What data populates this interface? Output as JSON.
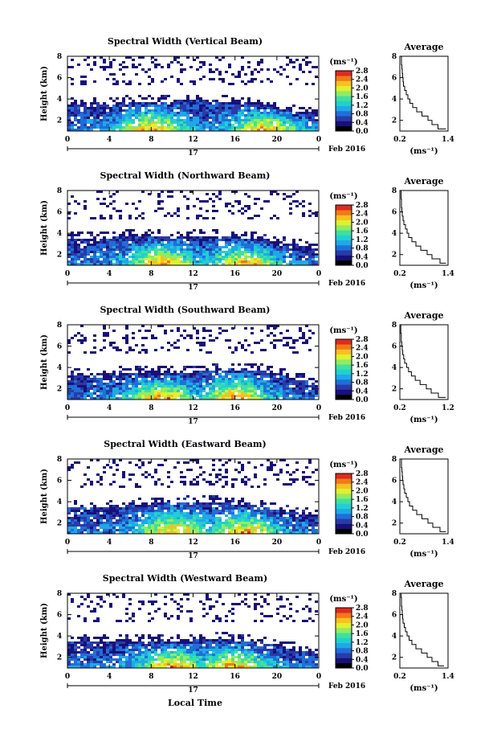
{
  "figure": {
    "xlabel": "Local Time",
    "date_mid_tick": "17",
    "date_right_label": "Feb 2016",
    "colorbar_unit": "(ms⁻¹)",
    "avg_title": "Average",
    "avg_xlabel": "(ms⁻¹)"
  },
  "colors": {
    "colormap": [
      "#000000",
      "#18107a",
      "#2a3aa8",
      "#1f6fd8",
      "#1fa8e8",
      "#20d0d0",
      "#40e0a0",
      "#90ec60",
      "#e0f030",
      "#f8c020",
      "#f07a18",
      "#e02a20"
    ]
  },
  "chart_data": [
    {
      "type": "heatmap",
      "title": "Spectral Width (Vertical Beam)",
      "ylabel": "Height (km)",
      "xlim": [
        0,
        24
      ],
      "ylim": [
        1,
        8
      ],
      "xticks": [
        "0",
        "4",
        "8",
        "12",
        "16",
        "20",
        "0"
      ],
      "yticks": [
        "2",
        "4",
        "6",
        "8"
      ],
      "colorbar": {
        "ticks": [
          "0.0",
          "0.4",
          "0.8",
          "1.2",
          "1.6",
          "2.0",
          "2.4",
          "2.8"
        ],
        "range": [
          0,
          2.8
        ]
      },
      "dense_top_km": [
        3.6,
        3.5,
        3.7,
        3.8,
        3.9,
        3.8,
        3.6,
        3.0,
        2.6
      ],
      "peak_hours": [
        8,
        19
      ],
      "average_profile": {
        "xlim": [
          0.2,
          1.4
        ],
        "xticks": [
          "0.2",
          "1.4"
        ],
        "yticks": [
          "2",
          "4",
          "6",
          "8"
        ],
        "height_km": [
          1.2,
          1.6,
          2.0,
          2.4,
          2.8,
          3.2,
          3.6,
          4.0,
          4.4,
          4.8,
          5.2,
          5.6,
          6.0,
          6.4,
          6.8,
          7.2,
          7.6,
          8.0
        ],
        "width": [
          1.35,
          1.15,
          1.0,
          0.9,
          0.75,
          0.62,
          0.52,
          0.45,
          0.4,
          0.36,
          0.32,
          0.29,
          0.28,
          0.27,
          0.26,
          0.25,
          0.24,
          0.24
        ]
      }
    },
    {
      "type": "heatmap",
      "title": "Spectral Width (Northward Beam)",
      "ylabel": "Height (km)",
      "xlim": [
        0,
        24
      ],
      "ylim": [
        1,
        8
      ],
      "xticks": [
        "0",
        "4",
        "8",
        "12",
        "16",
        "20",
        "0"
      ],
      "yticks": [
        "2",
        "4",
        "6",
        "8"
      ],
      "colorbar": {
        "ticks": [
          "0.0",
          "0.4",
          "0.8",
          "1.2",
          "1.6",
          "2.0",
          "2.4",
          "2.8"
        ],
        "range": [
          0,
          2.8
        ]
      },
      "dense_top_km": [
        3.6,
        3.5,
        3.7,
        3.8,
        3.8,
        3.7,
        3.5,
        3.0,
        2.5
      ],
      "peak_hours": [
        9,
        17
      ],
      "average_profile": {
        "xlim": [
          0.2,
          1.4
        ],
        "xticks": [
          "0.2",
          "1.4"
        ],
        "yticks": [
          "2",
          "4",
          "6",
          "8"
        ],
        "height_km": [
          1.2,
          1.6,
          2.0,
          2.4,
          2.8,
          3.2,
          3.6,
          4.0,
          4.4,
          4.8,
          5.2,
          5.6,
          6.0,
          6.4,
          6.8,
          7.2,
          7.6,
          8.0
        ],
        "width": [
          1.35,
          1.2,
          1.0,
          0.88,
          0.72,
          0.6,
          0.5,
          0.42,
          0.38,
          0.34,
          0.3,
          0.28,
          0.26,
          0.25,
          0.24,
          0.24,
          0.23,
          0.23
        ]
      }
    },
    {
      "type": "heatmap",
      "title": "Spectral Width (Southward Beam)",
      "ylabel": "Height (km)",
      "xlim": [
        0,
        24
      ],
      "ylim": [
        1,
        8
      ],
      "xticks": [
        "0",
        "4",
        "8",
        "12",
        "16",
        "20",
        "0"
      ],
      "yticks": [
        "2",
        "4",
        "6",
        "8"
      ],
      "colorbar": {
        "ticks": [
          "0.0",
          "0.4",
          "0.8",
          "1.2",
          "1.6",
          "2.0",
          "2.4",
          "2.8"
        ],
        "range": [
          0,
          2.8
        ]
      },
      "dense_top_km": [
        3.3,
        3.4,
        3.5,
        3.5,
        3.6,
        3.9,
        3.8,
        3.2,
        2.4
      ],
      "peak_hours": [
        9,
        16
      ],
      "average_profile": {
        "xlim": [
          0.2,
          1.2
        ],
        "xticks": [
          "0.2",
          "1.2"
        ],
        "yticks": [
          "2",
          "4",
          "6",
          "8"
        ],
        "height_km": [
          1.2,
          1.6,
          2.0,
          2.4,
          2.8,
          3.2,
          3.6,
          4.0,
          4.4,
          4.8,
          5.2,
          5.6,
          6.0,
          6.4,
          6.8,
          7.2,
          7.6,
          8.0
        ],
        "width": [
          1.15,
          1.0,
          0.85,
          0.75,
          0.62,
          0.52,
          0.44,
          0.38,
          0.34,
          0.3,
          0.28,
          0.26,
          0.25,
          0.24,
          0.23,
          0.23,
          0.22,
          0.22
        ]
      }
    },
    {
      "type": "heatmap",
      "title": "Spectral Width (Eastward Beam)",
      "ylabel": "Height (km)",
      "xlim": [
        0,
        24
      ],
      "ylim": [
        1,
        8
      ],
      "xticks": [
        "0",
        "4",
        "8",
        "12",
        "16",
        "20",
        "0"
      ],
      "yticks": [
        "2",
        "4",
        "6",
        "8"
      ],
      "colorbar": {
        "ticks": [
          "0.0",
          "0.4",
          "0.8",
          "1.2",
          "1.6",
          "2.0",
          "2.4",
          "2.8"
        ],
        "range": [
          0,
          2.8
        ]
      },
      "dense_top_km": [
        3.5,
        3.4,
        3.6,
        3.9,
        4.0,
        3.9,
        3.6,
        3.1,
        2.6
      ],
      "peak_hours": [
        10,
        17
      ],
      "average_profile": {
        "xlim": [
          0.2,
          1.4
        ],
        "xticks": [
          "0.2",
          "1.4"
        ],
        "yticks": [
          "2",
          "4",
          "6",
          "8"
        ],
        "height_km": [
          1.2,
          1.6,
          2.0,
          2.4,
          2.8,
          3.2,
          3.6,
          4.0,
          4.4,
          4.8,
          5.2,
          5.6,
          6.0,
          6.4,
          6.8,
          7.2,
          7.6,
          8.0
        ],
        "width": [
          1.35,
          1.2,
          1.02,
          0.9,
          0.75,
          0.62,
          0.52,
          0.44,
          0.4,
          0.36,
          0.32,
          0.3,
          0.28,
          0.27,
          0.26,
          0.25,
          0.24,
          0.24
        ]
      }
    },
    {
      "type": "heatmap",
      "title": "Spectral Width (Westward Beam)",
      "ylabel": "Height (km)",
      "xlim": [
        0,
        24
      ],
      "ylim": [
        1,
        8
      ],
      "xticks": [
        "0",
        "4",
        "8",
        "12",
        "16",
        "20",
        "0"
      ],
      "yticks": [
        "2",
        "4",
        "6",
        "8"
      ],
      "colorbar": {
        "ticks": [
          "0.0",
          "0.4",
          "0.8",
          "1.2",
          "1.6",
          "2.0",
          "2.4",
          "2.8"
        ],
        "range": [
          0,
          2.8
        ]
      },
      "dense_top_km": [
        3.4,
        3.5,
        3.6,
        3.5,
        3.6,
        3.7,
        3.4,
        2.9,
        2.4
      ],
      "peak_hours": [
        10,
        16
      ],
      "average_profile": {
        "xlim": [
          0.2,
          1.4
        ],
        "xticks": [
          "0.2",
          "1.4"
        ],
        "yticks": [
          "2",
          "4",
          "6",
          "8"
        ],
        "height_km": [
          1.2,
          1.6,
          2.0,
          2.4,
          2.8,
          3.2,
          3.6,
          4.0,
          4.4,
          4.8,
          5.2,
          5.6,
          6.0,
          6.4,
          6.8,
          7.2,
          7.6,
          8.0
        ],
        "width": [
          1.3,
          1.15,
          1.0,
          0.88,
          0.74,
          0.6,
          0.5,
          0.43,
          0.38,
          0.34,
          0.31,
          0.28,
          0.27,
          0.26,
          0.25,
          0.24,
          0.24,
          0.23
        ]
      }
    }
  ]
}
